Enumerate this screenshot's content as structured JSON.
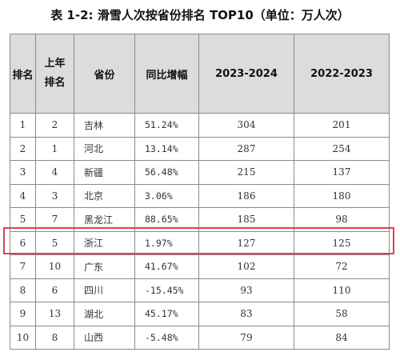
{
  "title": "表 1-2: 滑雪人次按省份排名 TOP10（单位：万人次）",
  "headers": {
    "rank": "排名",
    "prev_rank_top": "上年",
    "prev_rank_bottom": "排名",
    "province": "省份",
    "yoy": "同比增幅",
    "y2324": "2023-2024",
    "y2223": "2022-2023"
  },
  "highlight_color": "#e04050",
  "highlighted_row": 6,
  "rows": [
    {
      "rank": "1",
      "prev": "2",
      "province": "吉林",
      "yoy": "51.24%",
      "y2324": "304",
      "y2223": "201"
    },
    {
      "rank": "2",
      "prev": "1",
      "province": "河北",
      "yoy": "13.14%",
      "y2324": "287",
      "y2223": "254"
    },
    {
      "rank": "3",
      "prev": "4",
      "province": "新疆",
      "yoy": "56.48%",
      "y2324": "215",
      "y2223": "137"
    },
    {
      "rank": "4",
      "prev": "3",
      "province": "北京",
      "yoy": "3.06%",
      "y2324": "186",
      "y2223": "180"
    },
    {
      "rank": "5",
      "prev": "7",
      "province": "黑龙江",
      "yoy": "88.65%",
      "y2324": "185",
      "y2223": "98"
    },
    {
      "rank": "6",
      "prev": "5",
      "province": "浙江",
      "yoy": "1.97%",
      "y2324": "127",
      "y2223": "125"
    },
    {
      "rank": "7",
      "prev": "10",
      "province": "广东",
      "yoy": "41.67%",
      "y2324": "102",
      "y2223": "72"
    },
    {
      "rank": "8",
      "prev": "6",
      "province": "四川",
      "yoy": "-15.45%",
      "y2324": "93",
      "y2223": "110"
    },
    {
      "rank": "9",
      "prev": "13",
      "province": "湖北",
      "yoy": "45.17%",
      "y2324": "83",
      "y2223": "58"
    },
    {
      "rank": "10",
      "prev": "8",
      "province": "山西",
      "yoy": "-5.48%",
      "y2324": "79",
      "y2223": "84"
    }
  ]
}
